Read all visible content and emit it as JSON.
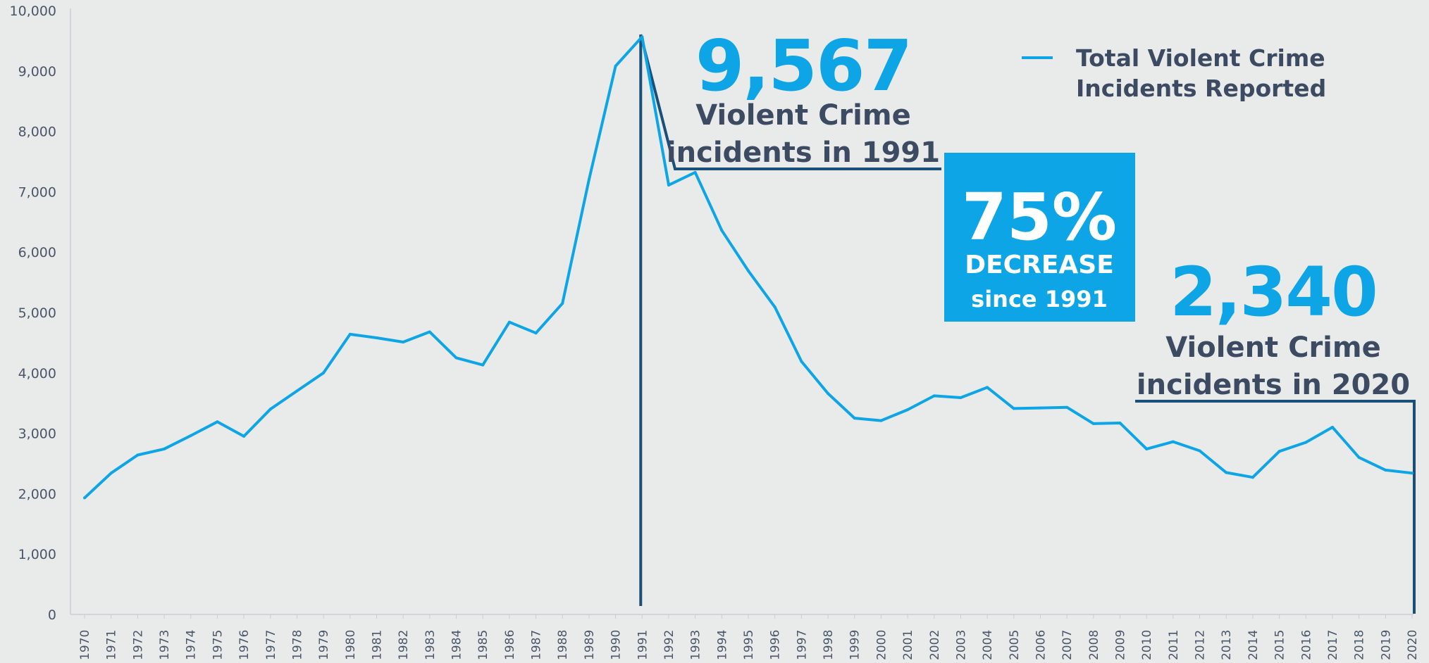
{
  "colors": {
    "background": "#e9ebeb",
    "series": "#0ea5e6",
    "marker": "#1a4f7a",
    "annotation_text": "#3c4a62",
    "box": "#0ea5e6"
  },
  "chart_data": {
    "type": "line",
    "title": "",
    "xlabel": "",
    "ylabel": "",
    "ylim": [
      0,
      10000
    ],
    "yticks": [
      0,
      1000,
      2000,
      3000,
      4000,
      5000,
      6000,
      7000,
      8000,
      9000,
      10000
    ],
    "ytick_labels": [
      "0",
      "1,000",
      "2,000",
      "3,000",
      "4,000",
      "5,000",
      "6,000",
      "7,000",
      "8,000",
      "9,000",
      "10,000"
    ],
    "x": [
      1970,
      1971,
      1972,
      1973,
      1974,
      1975,
      1976,
      1977,
      1978,
      1979,
      1980,
      1981,
      1982,
      1983,
      1984,
      1985,
      1986,
      1987,
      1988,
      1989,
      1990,
      1991,
      1992,
      1993,
      1994,
      1995,
      1996,
      1997,
      1998,
      1999,
      2000,
      2001,
      2002,
      2003,
      2004,
      2005,
      2006,
      2007,
      2008,
      2009,
      2010,
      2011,
      2012,
      2013,
      2014,
      2015,
      2016,
      2017,
      2018,
      2019,
      2020
    ],
    "xtick_labels": [
      "1970",
      "1971",
      "1972",
      "1973",
      "1974",
      "1975",
      "1976",
      "1977",
      "1978",
      "1979",
      "1980",
      "1981",
      "1982",
      "1983",
      "1984",
      "1985",
      "1986",
      "1987",
      "1988",
      "1989",
      "1990",
      "1991",
      "1992",
      "1993",
      "1994",
      "1995",
      "1996",
      "1997",
      "1998",
      "1999",
      "2000",
      "2001",
      "2002",
      "2003",
      "2004",
      "2005",
      "2006",
      "2007",
      "2008",
      "2009",
      "2010",
      "2011",
      "2012",
      "2013",
      "2014",
      "2015",
      "2016",
      "2017",
      "2018",
      "2019",
      "2020"
    ],
    "grid": false,
    "legend_position": "top-right",
    "series": [
      {
        "name": "Total Violent Crime Incidents Reported",
        "values": [
          1930,
          2340,
          2640,
          2740,
          2960,
          3190,
          2950,
          3400,
          3700,
          4000,
          4640,
          4580,
          4510,
          4680,
          4250,
          4130,
          4840,
          4660,
          5150,
          7200,
          9080,
          9567,
          7110,
          7320,
          6360,
          5690,
          5090,
          4190,
          3660,
          3250,
          3210,
          3390,
          3620,
          3590,
          3760,
          3410,
          3420,
          3430,
          3160,
          3170,
          2740,
          2860,
          2710,
          2350,
          2270,
          2700,
          2850,
          3100,
          2600,
          2390,
          2340
        ]
      }
    ],
    "annotations": {
      "peak": {
        "value_text": "9,567",
        "line1": "Violent Crime",
        "line2": "incidents in 1991",
        "year": 1991,
        "value": 9567
      },
      "latest": {
        "value_text": "2,340",
        "line1": "Violent Crime",
        "line2": "incidents in 2020",
        "year": 2020,
        "value": 2340
      },
      "decrease_box": {
        "percent": "75%",
        "line1": "DECREASE",
        "line2": "since 1991"
      }
    }
  }
}
